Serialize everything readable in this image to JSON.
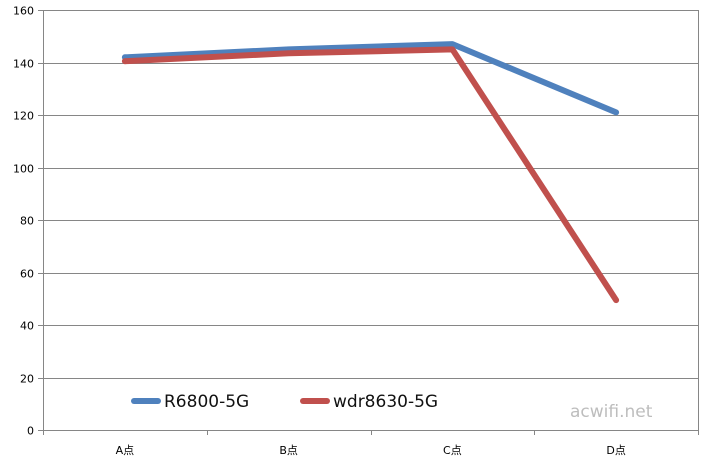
{
  "chart_data": {
    "type": "line",
    "categories": [
      "A点",
      "B点",
      "C点",
      "D点"
    ],
    "series": [
      {
        "name": "R6800-5G",
        "values": [
          142,
          145,
          147,
          121
        ],
        "color": "#4f81bd"
      },
      {
        "name": "wdr8630-5G",
        "values": [
          140.5,
          143.5,
          145,
          49.5
        ],
        "color": "#c0504d"
      }
    ],
    "ylim": [
      0,
      160
    ],
    "yticks": [
      0,
      20,
      40,
      60,
      80,
      100,
      120,
      140,
      160
    ],
    "grid": true,
    "legend": "bottom-left",
    "title": "",
    "xlabel": "",
    "ylabel": ""
  },
  "watermark": "acwifi.net"
}
